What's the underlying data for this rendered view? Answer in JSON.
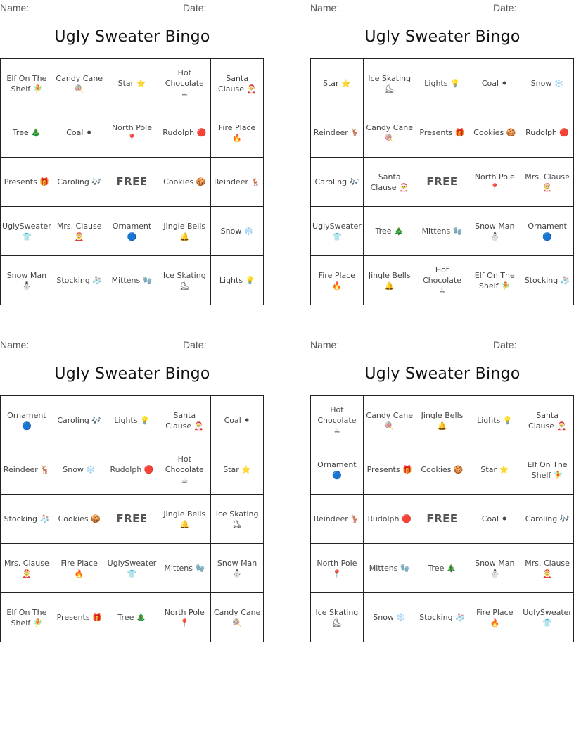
{
  "name_label": "Name:",
  "date_label": "Date:",
  "cards": [
    {
      "title": "Ugly Sweater Bingo",
      "cells": [
        "Elf On The Shelf 🧚",
        "Candy Cane 🍭",
        "Star ⭐",
        "Hot Chocolate ☕",
        "Santa Clause 🎅",
        "Tree 🎄",
        "Coal ⚫",
        "North Pole 📍",
        "Rudolph 🔴",
        "Fire Place 🔥",
        "Presents 🎁",
        "Caroling 🎶",
        "FREE",
        "Cookies 🍪",
        "Reindeer 🦌",
        "UglySweater 👕",
        "Mrs. Clause 🤶",
        "Ornament 🔵",
        "Jingle Bells 🔔",
        "Snow ❄️",
        "Snow Man ⛄",
        "Stocking 🧦",
        "Mittens 🧤",
        "Ice Skating ⛸",
        "Lights 💡"
      ]
    },
    {
      "title": "Ugly Sweater Bingo",
      "cells": [
        "Star ⭐",
        "Ice Skating ⛸",
        "Lights 💡",
        "Coal ⚫",
        "Snow ❄️",
        "Reindeer 🦌",
        "Candy Cane 🍭",
        "Presents 🎁",
        "Cookies 🍪",
        "Rudolph 🔴",
        "Caroling 🎶",
        "Santa Clause 🎅",
        "FREE",
        "North Pole 📍",
        "Mrs. Clause 🤶",
        "UglySweater 👕",
        "Tree 🎄",
        "Mittens 🧤",
        "Snow Man ⛄",
        "Ornament 🔵",
        "Fire Place 🔥",
        "Jingle Bells 🔔",
        "Hot Chocolate ☕",
        "Elf On The Shelf 🧚",
        "Stocking 🧦"
      ]
    },
    {
      "title": "Ugly Sweater Bingo",
      "cells": [
        "Ornament 🔵",
        "Caroling 🎶",
        "Lights 💡",
        "Santa Clause 🎅",
        "Coal ⚫",
        "Reindeer 🦌",
        "Snow ❄️",
        "Rudolph 🔴",
        "Hot Chocolate ☕",
        "Star ⭐",
        "Stocking 🧦",
        "Cookies 🍪",
        "FREE",
        "Jingle Bells 🔔",
        "Ice Skating ⛸",
        "Mrs. Clause 🤶",
        "Fire Place 🔥",
        "UglySweater 👕",
        "Mittens 🧤",
        "Snow Man ⛄",
        "Elf On The Shelf 🧚",
        "Presents 🎁",
        "Tree 🎄",
        "North Pole 📍",
        "Candy Cane 🍭"
      ]
    },
    {
      "title": "Ugly Sweater Bingo",
      "cells": [
        "Hot Chocolate ☕",
        "Candy Cane 🍭",
        "Jingle Bells 🔔",
        "Lights 💡",
        "Santa Clause 🎅",
        "Ornament 🔵",
        "Presents 🎁",
        "Cookies 🍪",
        "Star ⭐",
        "Elf On The Shelf 🧚",
        "Reindeer 🦌",
        "Rudolph 🔴",
        "FREE",
        "Coal ⚫",
        "Caroling 🎶",
        "North Pole 📍",
        "Mittens 🧤",
        "Tree 🎄",
        "Snow Man ⛄",
        "Mrs. Clause 🤶",
        "Ice Skating ⛸",
        "Snow ❄️",
        "Stocking 🧦",
        "Fire Place 🔥",
        "UglySweater 👕"
      ]
    }
  ]
}
